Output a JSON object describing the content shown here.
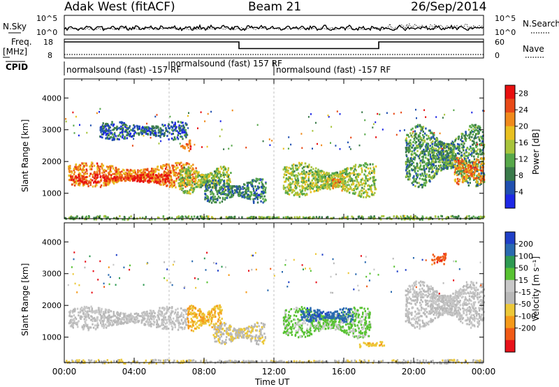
{
  "header": {
    "title": "Adak West (fitACF)",
    "beam": "Beam 21",
    "date": "26/Sep/2014"
  },
  "noise_panel": {
    "left_label": "N.Sky",
    "right_label": "N.Search",
    "left_ticks": [
      "10^5",
      "10^0"
    ],
    "right_ticks": [
      "10^5",
      "10^0"
    ]
  },
  "freq_panel": {
    "left_label_line1": "Freq.",
    "left_label_line2": "[MHz]",
    "right_label": "Nave",
    "left_ticks": [
      "18",
      "8"
    ],
    "right_ticks": [
      "60",
      "0"
    ],
    "freq_segments": [
      {
        "start": 0,
        "end": 10,
        "value": 16.5
      },
      {
        "start": 10,
        "end": 18,
        "value": 13.0
      },
      {
        "start": 18,
        "end": 24,
        "value": 16.5
      }
    ]
  },
  "cpid_panel": {
    "label": "CPID",
    "entries": [
      {
        "text": "normalsound (fast) -157 RF",
        "row": "low",
        "start": 0
      },
      {
        "text": "normalsound (fast) 157 RF",
        "row": "high",
        "start": 6
      },
      {
        "text": "normalsound (fast) -157 RF",
        "row": "low",
        "start": 12
      }
    ]
  },
  "colors": {
    "power": [
      "#1e28e6",
      "#2050b0",
      "#3a7a4a",
      "#57a84a",
      "#a8c43c",
      "#e8c020",
      "#f08a1c",
      "#e84a18",
      "#e81010"
    ],
    "velocity": [
      "#e8121a",
      "#f05a16",
      "#f59a1a",
      "#ecc838",
      "#b8b8b8",
      "#c8c8c8",
      "#58c232",
      "#2e9a52",
      "#2a6ab0",
      "#2040c8"
    ]
  },
  "chart_data": [
    {
      "type": "heatmap",
      "title": "Power",
      "xlabel": "Time UT",
      "ylabel": "Slant Range [km]",
      "xlim": [
        0,
        24
      ],
      "ylim": [
        200,
        4600
      ],
      "x_ticks": [
        "00:00",
        "04:00",
        "08:00",
        "12:00",
        "16:00",
        "20:00",
        "00:00"
      ],
      "y_ticks": [
        "1000",
        "2000",
        "3000",
        "4000"
      ],
      "colorbar_label": "Power [dB]",
      "colorbar_ticks": [
        "4",
        "8",
        "12",
        "16",
        "20",
        "24",
        "28"
      ],
      "colorbar_range": [
        0,
        30
      ],
      "regions": [
        {
          "t0": 0.2,
          "t1": 7.5,
          "r0": 1200,
          "r1": 2000,
          "level": 22
        },
        {
          "t0": 0.3,
          "t1": 6.0,
          "r0": 1350,
          "r1": 1650,
          "level": 28
        },
        {
          "t0": 6.5,
          "t1": 9.5,
          "r0": 1000,
          "r1": 1900,
          "level": 14
        },
        {
          "t0": 8.0,
          "t1": 11.5,
          "r0": 700,
          "r1": 1500,
          "level": 8
        },
        {
          "t0": 2.0,
          "t1": 7.0,
          "r0": 2700,
          "r1": 3300,
          "level": 6
        },
        {
          "t0": 6.6,
          "t1": 7.2,
          "r0": 2350,
          "r1": 2700,
          "level": 24
        },
        {
          "t0": 12.5,
          "t1": 17.8,
          "r0": 900,
          "r1": 2000,
          "level": 14
        },
        {
          "t0": 15.0,
          "t1": 16.0,
          "r0": 1100,
          "r1": 1600,
          "level": 20
        },
        {
          "t0": 19.5,
          "t1": 24.0,
          "r0": 1200,
          "r1": 3200,
          "level": 10
        },
        {
          "t0": 22.3,
          "t1": 24.0,
          "r0": 1300,
          "r1": 2200,
          "level": 22
        },
        {
          "t0": 0.0,
          "t1": 24.0,
          "r0": 200,
          "r1": 320,
          "level": 12
        }
      ]
    },
    {
      "type": "heatmap",
      "title": "Velocity",
      "xlabel": "Time UT",
      "ylabel": "Slant Range [km]",
      "xlim": [
        0,
        24
      ],
      "ylim": [
        200,
        4600
      ],
      "x_ticks": [
        "00:00",
        "04:00",
        "08:00",
        "12:00",
        "16:00",
        "20:00",
        "00:00"
      ],
      "y_ticks": [
        "1000",
        "2000",
        "3000",
        "4000"
      ],
      "colorbar_label": "Velocity [m s⁻¹]",
      "colorbar_ticks": [
        "200",
        "100",
        "50",
        "15",
        "-15",
        "-50",
        "-100",
        "-200"
      ],
      "colorbar_range": [
        -250,
        250
      ],
      "regions": [
        {
          "t0": 0.2,
          "t1": 7.0,
          "r0": 1250,
          "r1": 2000,
          "level": 0
        },
        {
          "t0": 7.0,
          "t1": 9.0,
          "r0": 1200,
          "r1": 2050,
          "level": -100
        },
        {
          "t0": 8.5,
          "t1": 11.5,
          "r0": 800,
          "r1": 1500,
          "level": -40
        },
        {
          "t0": 12.5,
          "t1": 17.5,
          "r0": 1000,
          "r1": 2000,
          "level": 60
        },
        {
          "t0": 13.5,
          "t1": 16.5,
          "r0": 1500,
          "r1": 1950,
          "level": 180
        },
        {
          "t0": 16.8,
          "t1": 18.3,
          "r0": 700,
          "r1": 900,
          "level": -80
        },
        {
          "t0": 19.5,
          "t1": 24.0,
          "r0": 1300,
          "r1": 2800,
          "level": 0
        },
        {
          "t0": 21.0,
          "t1": 21.8,
          "r0": 3300,
          "r1": 3700,
          "level": -180
        },
        {
          "t0": 0.0,
          "t1": 24.0,
          "r0": 200,
          "r1": 320,
          "level": -40
        }
      ]
    }
  ]
}
